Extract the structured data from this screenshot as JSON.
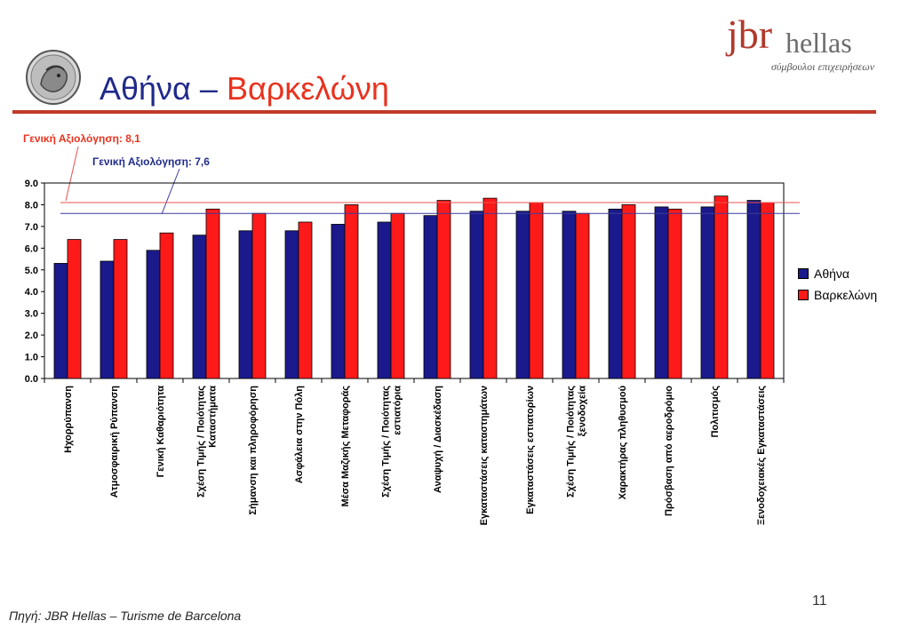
{
  "header": {
    "title_athens": "Αθήνα",
    "title_dash": "–",
    "title_barcelona": "Βαρκελώνη"
  },
  "logo": {
    "brand": "jbr",
    "name": "hellas",
    "tagline": "σύμβουλοι επιχειρήσεων"
  },
  "annotations": {
    "barcelona_overall": "Γενική Αξιολόγηση: 8,1",
    "athens_overall": "Γενική Αξιολόγηση: 7,6"
  },
  "footer": {
    "page_number": "11",
    "source": "Πηγή: JBR Hellas – Turisme de Barcelona"
  },
  "colors": {
    "athens": "#1a1a8c",
    "barcelona": "#ff1a1a",
    "barcelona_line": "#e85050",
    "athens_line": "#3a3a9a"
  },
  "chart_data": {
    "type": "bar",
    "categories": [
      [
        "Ηχορρύπανση"
      ],
      [
        "Ατμοσφαιρική Ρύπανση"
      ],
      [
        "Γενική Καθαριότητα"
      ],
      [
        "Σχέση Τιμής / Ποιότητας",
        "Καταστήματα"
      ],
      [
        "Σήμανση και πληροφόρηση"
      ],
      [
        "Ασφάλεια στην Πόλη"
      ],
      [
        "Μέσα Μαζικής Μεταφοράς"
      ],
      [
        "Σχέση Τιμής / Ποιότητας",
        "εστιατόρια"
      ],
      [
        "Αναψυχή / Διασκέδαση"
      ],
      [
        "Εγκαταστάσεις καταστημάτων"
      ],
      [
        "Εγκαταστάσεις εστιατορίων"
      ],
      [
        "Σχέση Τιμής / Ποιότητας",
        "ξενοδοχεία"
      ],
      [
        "Χαρακτήρας πληθυσμού"
      ],
      [
        "Πρόσβαση από αεροδρόμιο"
      ],
      [
        "Πολιτισμός"
      ],
      [
        "Ξενοδοχειακές Εγκαταστάσεις"
      ]
    ],
    "series": [
      {
        "name": "Αθήνα",
        "values": [
          5.3,
          5.4,
          5.9,
          6.6,
          6.8,
          6.8,
          7.1,
          7.2,
          7.5,
          7.7,
          7.7,
          7.7,
          7.8,
          7.9,
          7.9,
          8.2
        ]
      },
      {
        "name": "Βαρκελώνη",
        "values": [
          6.4,
          6.4,
          6.7,
          7.8,
          7.6,
          7.2,
          8.0,
          7.6,
          8.2,
          8.3,
          8.1,
          7.6,
          8.0,
          7.8,
          8.4,
          8.1
        ]
      }
    ],
    "reference_lines": [
      {
        "label": "Γενική Αξιολόγηση: 8,1",
        "value": 8.1,
        "series": "Βαρκελώνη"
      },
      {
        "label": "Γενική Αξιολόγηση: 7,6",
        "value": 7.6,
        "series": "Αθήνα"
      }
    ],
    "ylim": [
      0,
      9
    ],
    "yticks": [
      "0.0",
      "1.0",
      "2.0",
      "3.0",
      "4.0",
      "5.0",
      "6.0",
      "7.0",
      "8.0",
      "9.0"
    ],
    "grid": false,
    "legend_position": "right"
  }
}
